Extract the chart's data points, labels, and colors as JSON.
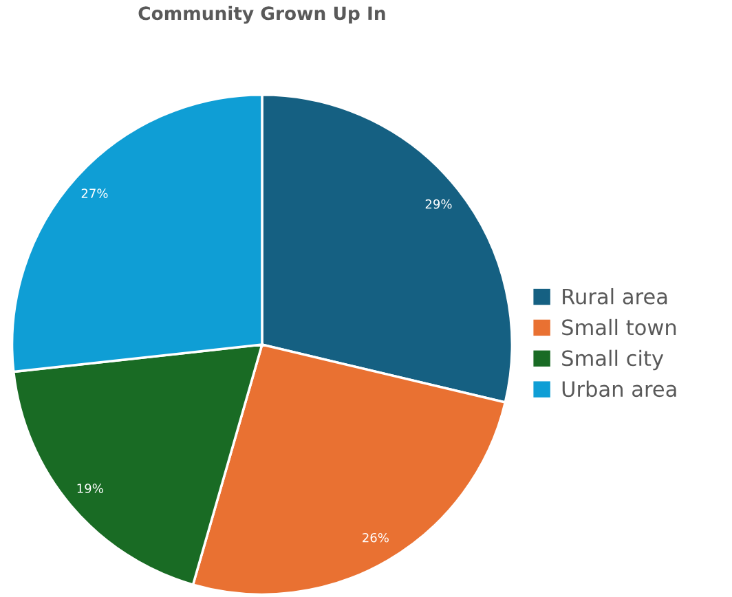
{
  "chart_data": {
    "type": "pie",
    "title": "Community Grown Up In",
    "categories": [
      "Rural area",
      "Small town",
      "Small city",
      "Urban area"
    ],
    "values": [
      29,
      26,
      19,
      27
    ],
    "colors": [
      "#156082",
      "#e97132",
      "#196b24",
      "#0f9ed5"
    ],
    "value_labels": [
      "29%",
      "26%",
      "19%",
      "27%"
    ],
    "legend": "right"
  }
}
